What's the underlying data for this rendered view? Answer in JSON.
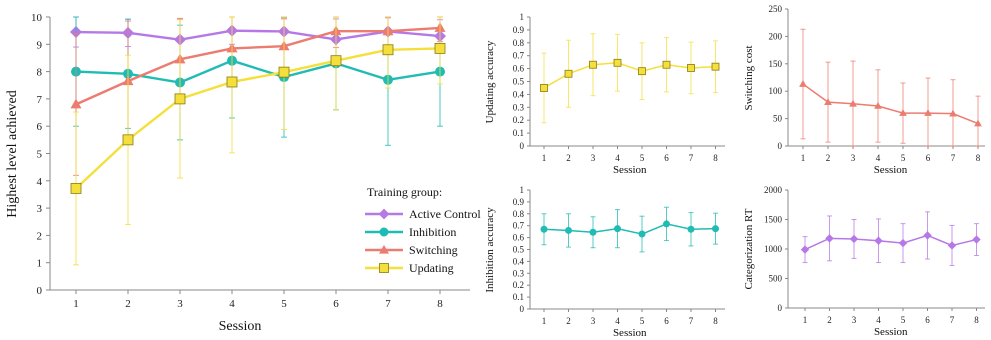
{
  "chart_data": [
    {
      "type": "line",
      "xlabel": "Session",
      "ylabel": "Highest level achieved",
      "xlim": [
        1,
        8
      ],
      "ylim": [
        0,
        10
      ],
      "x": [
        1,
        2,
        3,
        4,
        5,
        6,
        7,
        8
      ],
      "y_ticks": [
        0,
        1,
        2,
        3,
        4,
        5,
        6,
        7,
        8,
        9,
        10
      ],
      "legend_title": "Training group:",
      "legend_position": "bottom-right",
      "grid": false,
      "series": [
        {
          "name": "Active Control",
          "color": "#b678e6",
          "marker": "diamond",
          "values": [
            9.45,
            9.42,
            9.17,
            9.5,
            9.47,
            9.18,
            9.47,
            9.3
          ],
          "errors": [
            0.55,
            0.5,
            0.75,
            0.5,
            0.5,
            0.75,
            0.5,
            0.6
          ]
        },
        {
          "name": "Inhibition",
          "color": "#20bcb4",
          "marker": "circle",
          "values": [
            8.0,
            7.92,
            7.6,
            8.4,
            7.8,
            8.3,
            7.7,
            8.0
          ],
          "errors": [
            2.0,
            2.0,
            2.1,
            2.1,
            2.2,
            1.7,
            2.4,
            2.0
          ]
        },
        {
          "name": "Switching",
          "color": "#ec7b70",
          "marker": "triangle",
          "values": [
            6.8,
            7.65,
            8.45,
            8.85,
            8.93,
            9.48,
            9.48,
            9.6
          ],
          "errors": [
            2.6,
            2.2,
            1.5,
            1.2,
            1.0,
            0.6,
            0.6,
            0.5
          ]
        },
        {
          "name": "Updating",
          "color": "#f5df3a",
          "marker": "square",
          "values": [
            3.72,
            5.5,
            7.0,
            7.62,
            7.98,
            8.4,
            8.8,
            8.85
          ],
          "errors": [
            2.8,
            3.1,
            2.9,
            2.6,
            2.1,
            1.8,
            1.4,
            1.3
          ]
        }
      ]
    },
    {
      "type": "line",
      "xlabel": "Session",
      "ylabel": "Updating accuracy",
      "ylim": [
        0,
        1
      ],
      "y_ticks": [
        "0",
        "0.1",
        "0.2",
        "0.3",
        "0.4",
        "0.5",
        "0.6",
        "0.7",
        "0.8",
        "0.9",
        "1"
      ],
      "x": [
        1,
        2,
        3,
        4,
        5,
        6,
        7,
        8
      ],
      "color": "#f5df3a",
      "marker": "square",
      "values": [
        0.45,
        0.56,
        0.63,
        0.645,
        0.58,
        0.63,
        0.605,
        0.615
      ],
      "errors": [
        0.27,
        0.26,
        0.24,
        0.22,
        0.22,
        0.21,
        0.2,
        0.2
      ]
    },
    {
      "type": "line",
      "xlabel": "Session",
      "ylabel": "Switching cost",
      "ylim": [
        0,
        250
      ],
      "y_ticks": [
        "0",
        "50",
        "100",
        "150",
        "200",
        "250"
      ],
      "x": [
        1,
        2,
        3,
        4,
        5,
        6,
        7,
        8
      ],
      "color": "#ec7b70",
      "marker": "triangle",
      "values": [
        113,
        80,
        77,
        73,
        60,
        60,
        59,
        41
      ],
      "errors": [
        100,
        73,
        78,
        66,
        55,
        64,
        62,
        50
      ]
    },
    {
      "type": "line",
      "xlabel": "Session",
      "ylabel": "Inhibition accuracy",
      "ylim": [
        0,
        1
      ],
      "y_ticks": [
        "0",
        "0.1",
        "0.2",
        "0.3",
        "0.4",
        "0.5",
        "0.6",
        "0.7",
        "0.8",
        "0.9",
        "1"
      ],
      "x": [
        1,
        2,
        3,
        4,
        5,
        6,
        7,
        8
      ],
      "color": "#20bcb4",
      "marker": "circle",
      "values": [
        0.67,
        0.66,
        0.645,
        0.675,
        0.63,
        0.715,
        0.67,
        0.675
      ],
      "errors": [
        0.13,
        0.14,
        0.13,
        0.16,
        0.15,
        0.14,
        0.14,
        0.13
      ]
    },
    {
      "type": "line",
      "xlabel": "Session",
      "ylabel": "Categorization RT",
      "ylim": [
        0,
        2000
      ],
      "y_ticks": [
        "0",
        "500",
        "1000",
        "1500",
        "2000"
      ],
      "x": [
        1,
        2,
        3,
        4,
        5,
        6,
        7,
        8
      ],
      "color": "#b678e6",
      "marker": "diamond",
      "values": [
        990,
        1180,
        1170,
        1140,
        1100,
        1230,
        1060,
        1160
      ],
      "errors": [
        220,
        380,
        330,
        370,
        330,
        400,
        340,
        270
      ]
    }
  ]
}
